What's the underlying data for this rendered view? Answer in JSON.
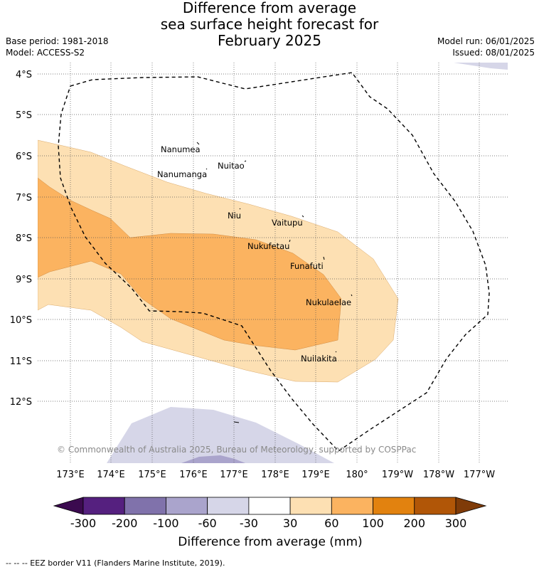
{
  "title": {
    "line1": "Difference from average",
    "line2": "sea surface height forecast for",
    "line3": "February 2025"
  },
  "meta": {
    "base_period": "Base period: 1981-2018",
    "model": "Model: ACCESS-S2",
    "model_run": "Model run: 06/01/2025",
    "issued": "Issued: 08/01/2025"
  },
  "map": {
    "lat_labels": [
      "4°S",
      "5°S",
      "6°S",
      "7°S",
      "8°S",
      "9°S",
      "10°S",
      "11°S",
      "12°S"
    ],
    "lon_labels": [
      "173°E",
      "174°E",
      "175°E",
      "176°E",
      "177°E",
      "178°E",
      "179°E",
      "180°",
      "179°W",
      "178°W",
      "177°W"
    ],
    "islands": [
      {
        "name": "Nanumea"
      },
      {
        "name": "Nuitao"
      },
      {
        "name": "Nanumanga"
      },
      {
        "name": "Niu"
      },
      {
        "name": "Vaitupu"
      },
      {
        "name": "Nukufetau"
      },
      {
        "name": "Funafuti"
      },
      {
        "name": "Nukulaelae"
      },
      {
        "name": "Nuilakita"
      }
    ],
    "copyright": "© Commonwealth of Australia 2025, Bureau of Meteorology, supported by COSPPac"
  },
  "colorbar": {
    "ticks": [
      "-300",
      "-200",
      "-100",
      "-60",
      "-30",
      "30",
      "60",
      "100",
      "200",
      "300"
    ],
    "colors": [
      "#3b0a4f",
      "#55207f",
      "#8072ab",
      "#aaa4cc",
      "#d6d6e8",
      "#ffffff",
      "#fde0b3",
      "#fbb360",
      "#e2820f",
      "#b15607",
      "#7f3b08"
    ],
    "label": "Difference from average (mm)"
  },
  "footer": "-- -- -- EEZ border V11 (Flanders Marine Institute, 2019)."
}
